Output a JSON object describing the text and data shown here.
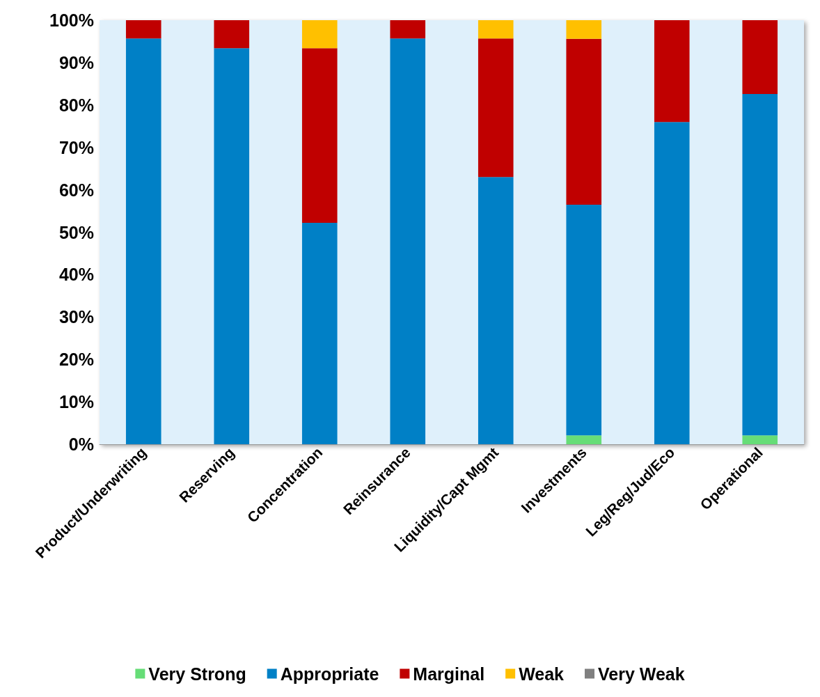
{
  "chart_data": {
    "type": "bar",
    "stacked": true,
    "categories": [
      "Product/Underwriting",
      "Reserving",
      "Concentration",
      "Reinsurance",
      "Liquidity/Capt Mgmt",
      "Investments",
      "Leg/Reg/Jud/Eco",
      "Operational"
    ],
    "series": [
      {
        "name": "Very Strong",
        "color": "#66dd77",
        "values": [
          0,
          0,
          0,
          0,
          0,
          2.1,
          0,
          2.1
        ]
      },
      {
        "name": "Appropriate",
        "color": "#0080c6",
        "values": [
          95.7,
          93.4,
          52.2,
          95.7,
          63.0,
          54.4,
          76.0,
          80.5
        ]
      },
      {
        "name": "Marginal",
        "color": "#c00000",
        "values": [
          4.3,
          6.6,
          41.2,
          4.3,
          32.7,
          39.1,
          24.0,
          17.4
        ]
      },
      {
        "name": "Weak",
        "color": "#ffc000",
        "values": [
          0,
          0,
          6.6,
          0,
          4.3,
          4.4,
          0,
          0
        ]
      },
      {
        "name": "Very Weak",
        "color": "#808080",
        "values": [
          0,
          0,
          0,
          0,
          0,
          0,
          0,
          0
        ]
      }
    ],
    "ylim": [
      0,
      100
    ],
    "yticks": [
      {
        "value": 0,
        "label": "0%"
      },
      {
        "value": 10,
        "label": "10%"
      },
      {
        "value": 20,
        "label": "20%"
      },
      {
        "value": 30,
        "label": "30%"
      },
      {
        "value": 40,
        "label": "40%"
      },
      {
        "value": 50,
        "label": "50%"
      },
      {
        "value": 60,
        "label": "60%"
      },
      {
        "value": 70,
        "label": "70%"
      },
      {
        "value": 80,
        "label": "80%"
      },
      {
        "value": 90,
        "label": "90%"
      },
      {
        "value": 100,
        "label": "100%"
      }
    ],
    "grid": false,
    "legend": "bottom"
  }
}
